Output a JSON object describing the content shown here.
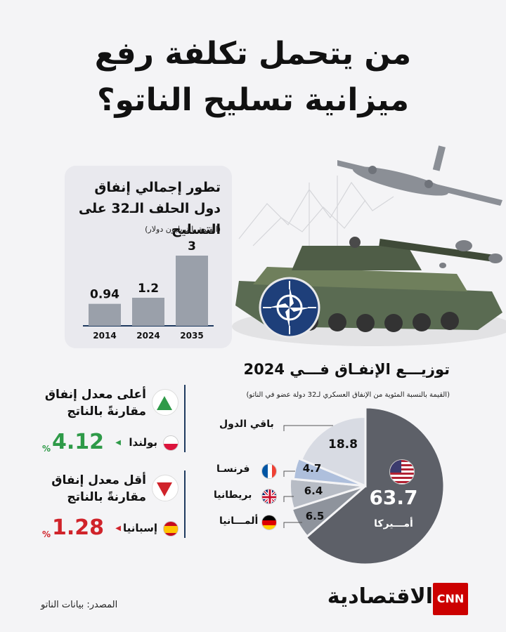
{
  "title": {
    "line1": "من يتحمل تكلفة رفع",
    "line2": "ميزانية تسليح الناتو؟"
  },
  "bar_card": {
    "title": "تطور إجمالي إنفاق دول الحلف الـ32 على التسليح",
    "subtitle": "(القيمة بالتريليون دولار)"
  },
  "highest": {
    "label_line1": "أعلى معدل إنفاق",
    "label_line2": "مقارنةً بالناتج",
    "country": "بولندا",
    "value": "4.12",
    "unit": "%",
    "color": "#2e9a48"
  },
  "lowest": {
    "label_line1": "أقل معدل إنفاق",
    "label_line2": "مقارنةً بالناتج",
    "country": "إسبانيا",
    "value": "1.28",
    "unit": "%",
    "color": "#d0232a"
  },
  "pie": {
    "title": "توزيـــع الإنفـاق فـــي 2024",
    "subtitle": "(القيمة بالنسبة المئوية من الإنفاق العسكري لـ32 دولة عضو في الناتو)"
  },
  "source": "المصدر: بيانات الناتو",
  "brand": {
    "name": "الاقتصادية",
    "logo": "CNN"
  },
  "chart_data": [
    {
      "type": "bar",
      "title": "تطور إجمالي إنفاق دول الحلف الـ32 على التسليح",
      "ylabel": "(القيمة بالتريليون دولار)",
      "categories": [
        "2014",
        "2024",
        "2035"
      ],
      "values": [
        0.94,
        1.2,
        3
      ],
      "value_labels": [
        "0.94",
        "1.2",
        "3"
      ],
      "ylim": [
        0,
        3
      ],
      "grid": false,
      "color": "#9aa0aa"
    },
    {
      "type": "pie",
      "title": "توزيـــع الإنفـاق فـــي 2024",
      "categories": [
        "أمـــيركا",
        "ألمـــانيا",
        "بريطانيا",
        "فرنسـا",
        "باقي الدول"
      ],
      "values": [
        63.7,
        6.5,
        6.4,
        4.7,
        18.8
      ],
      "value_labels": [
        "63.7",
        "6.5",
        "6.4",
        "4.7",
        "18.8"
      ],
      "colors": [
        "#5d6068",
        "#8e939c",
        "#b7bcc5",
        "#aebfdc",
        "#d8dbe3"
      ],
      "flags": [
        "us-flag-icon",
        "germany-flag-icon",
        "uk-flag-icon",
        "france-flag-icon",
        ""
      ]
    }
  ]
}
